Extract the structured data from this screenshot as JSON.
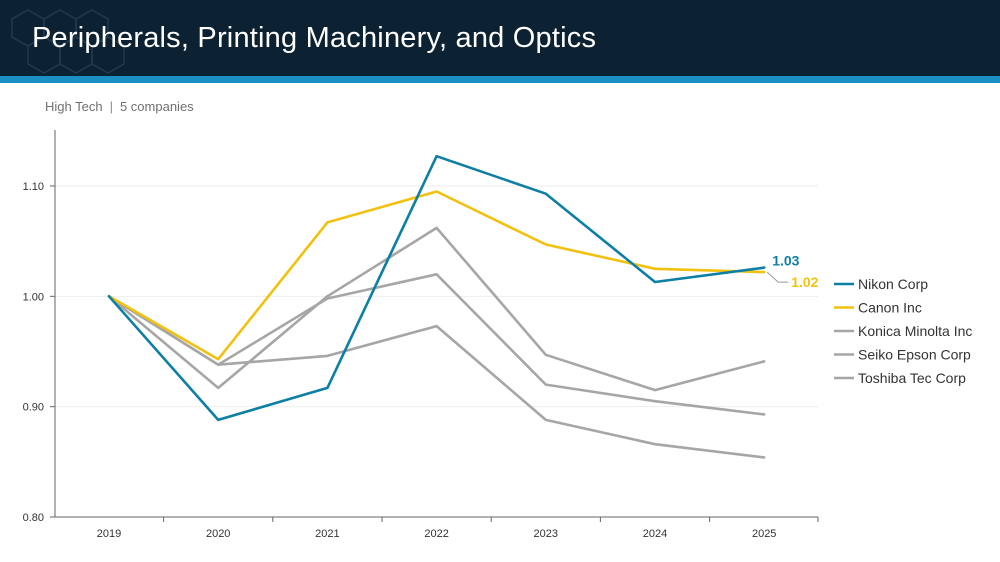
{
  "header": {
    "title": "Peripherals, Printing Machinery, and Optics",
    "sector": "High Tech",
    "separator": "|",
    "company_count": "5 companies"
  },
  "colors": {
    "header_bg": "#0c2233",
    "stripe": "#1c8fc2",
    "nikon": "#0d7fa5",
    "canon": "#f2c10f",
    "gray": "#a6a6a6"
  },
  "chart_data": {
    "type": "line",
    "title": "Peripherals, Printing Machinery, and Optics",
    "xlabel": "",
    "ylabel": "",
    "x": [
      "2019",
      "2020",
      "2021",
      "2022",
      "2023",
      "2024",
      "2025"
    ],
    "ylim": [
      0.8,
      1.15
    ],
    "yticks": [
      0.8,
      0.9,
      1.0,
      1.1
    ],
    "ytick_labels": [
      "0.80",
      "0.90",
      "1.00",
      "1.10"
    ],
    "grid": true,
    "legend_position": "right",
    "series": [
      {
        "name": "Toshiba Tec Corp",
        "color": "#a6a6a6",
        "values": [
          1.0,
          0.938,
          0.946,
          0.973,
          0.888,
          0.866,
          0.854
        ]
      },
      {
        "name": "Seiko Epson Corp",
        "color": "#a6a6a6",
        "values": [
          1.0,
          0.938,
          0.998,
          1.02,
          0.92,
          0.905,
          0.893
        ]
      },
      {
        "name": "Konica Minolta Inc",
        "color": "#a6a6a6",
        "values": [
          1.0,
          0.917,
          1.0,
          1.062,
          0.947,
          0.915,
          0.941
        ]
      },
      {
        "name": "Canon Inc",
        "color": "#f2c10f",
        "values": [
          1.0,
          0.943,
          1.067,
          1.095,
          1.047,
          1.025,
          1.022
        ],
        "end_label": "1.02"
      },
      {
        "name": "Nikon Corp",
        "color": "#0d7fa5",
        "values": [
          1.0,
          0.888,
          0.917,
          1.127,
          1.093,
          1.013,
          1.026
        ],
        "end_label": "1.03"
      }
    ],
    "legend_order": [
      "Nikon Corp",
      "Canon Inc",
      "Konica Minolta Inc",
      "Seiko Epson Corp",
      "Toshiba Tec Corp"
    ]
  }
}
